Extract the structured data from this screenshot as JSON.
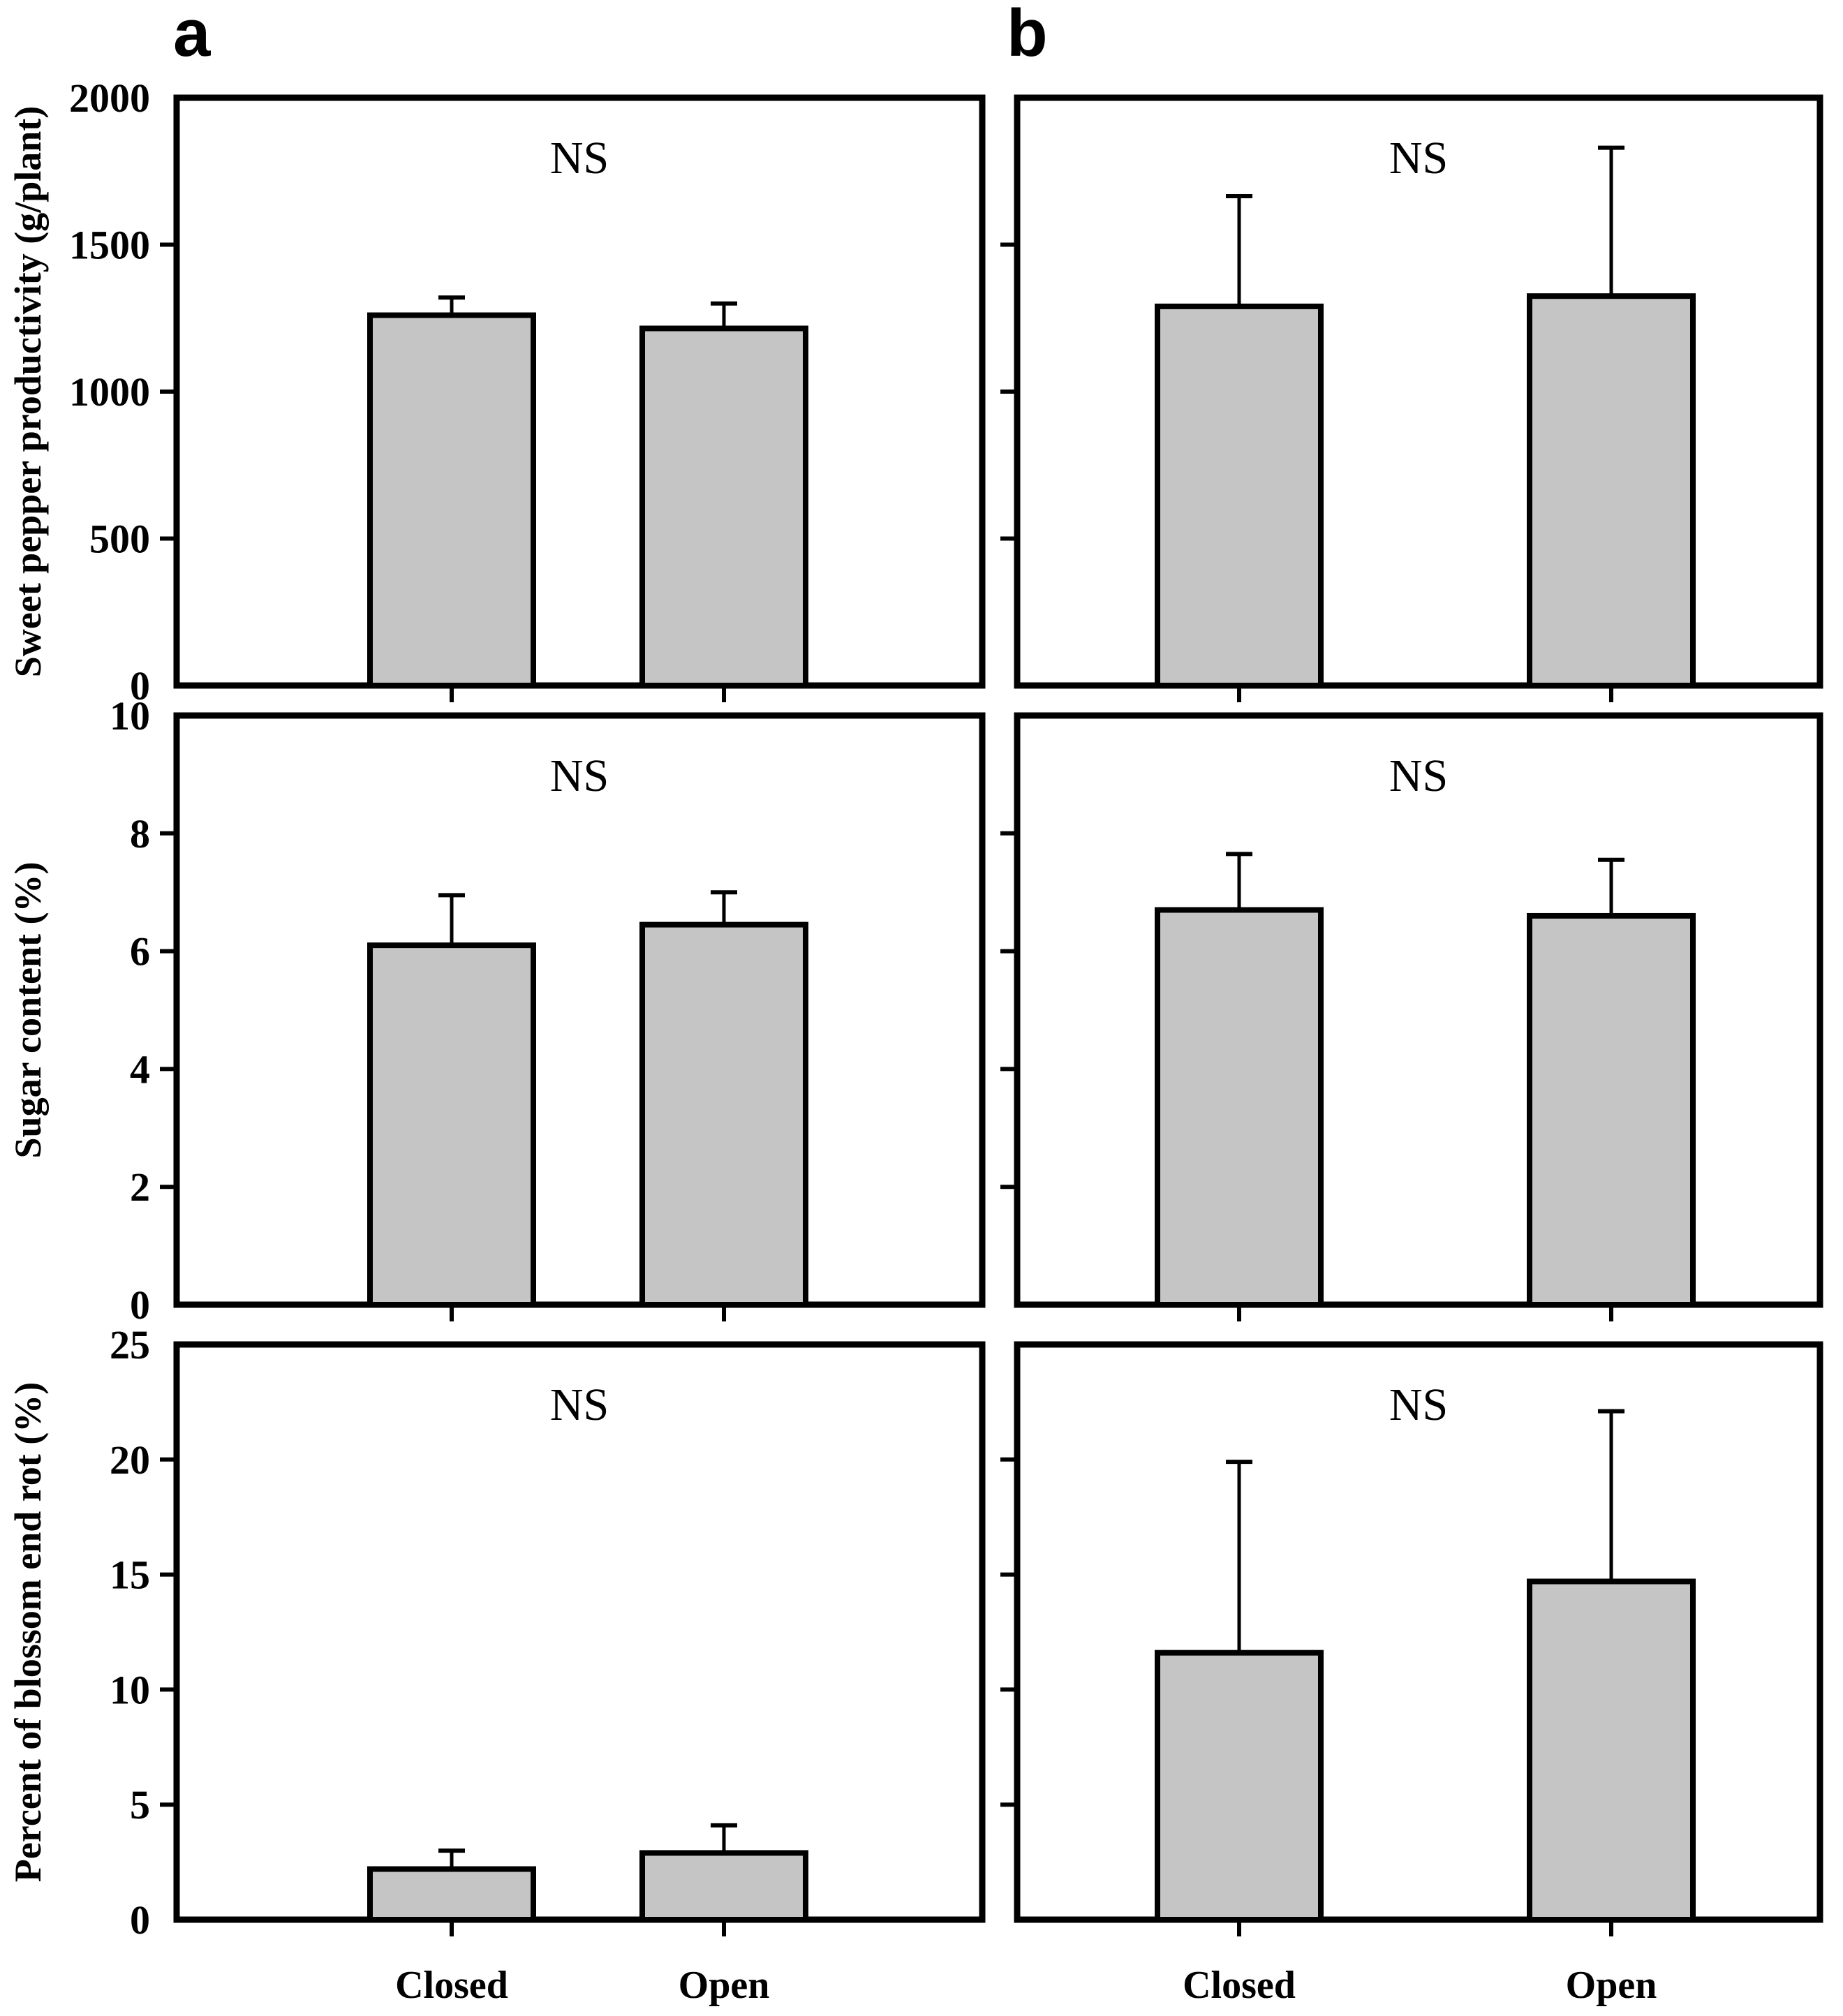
{
  "figure": {
    "panel_labels": {
      "a": "a",
      "b": "b"
    },
    "colors": {
      "bar_fill": "#c5c5c5",
      "bar_border": "#000000",
      "background": "#ffffff",
      "text": "#000000"
    }
  },
  "chart_data": [
    {
      "type": "bar",
      "panel": "a",
      "row": 1,
      "annotation": "NS",
      "ylabel": "Sweet pepper productivity (g/plant)",
      "ylim": [
        0,
        2000
      ],
      "yticks": [
        0,
        500,
        1000,
        1500,
        2000
      ],
      "show_ytick_labels": true,
      "categories": [
        "Closed",
        "Open"
      ],
      "show_category_labels": false,
      "values": [
        1260,
        1215
      ],
      "error_upper": [
        1320,
        1300
      ],
      "legend": "none",
      "grid": false
    },
    {
      "type": "bar",
      "panel": "b",
      "row": 1,
      "annotation": "NS",
      "ylabel": "",
      "ylim": [
        0,
        2000
      ],
      "yticks": [
        0,
        500,
        1000,
        1500,
        2000
      ],
      "show_ytick_labels": false,
      "categories": [
        "Closed",
        "Open"
      ],
      "show_category_labels": false,
      "values": [
        1290,
        1325
      ],
      "error_upper": [
        1665,
        1830
      ],
      "legend": "none",
      "grid": false
    },
    {
      "type": "bar",
      "panel": "a",
      "row": 2,
      "annotation": "NS",
      "ylabel": "Sugar content (%)",
      "ylim": [
        0,
        10
      ],
      "yticks": [
        0,
        2,
        4,
        6,
        8,
        10
      ],
      "show_ytick_labels": true,
      "categories": [
        "Closed",
        "Open"
      ],
      "show_category_labels": false,
      "values": [
        6.1,
        6.45
      ],
      "error_upper": [
        6.95,
        7.0
      ],
      "legend": "none",
      "grid": false
    },
    {
      "type": "bar",
      "panel": "b",
      "row": 2,
      "annotation": "NS",
      "ylabel": "",
      "ylim": [
        0,
        10
      ],
      "yticks": [
        0,
        2,
        4,
        6,
        8,
        10
      ],
      "show_ytick_labels": false,
      "categories": [
        "Closed",
        "Open"
      ],
      "show_category_labels": false,
      "values": [
        6.7,
        6.6
      ],
      "error_upper": [
        7.65,
        7.55
      ],
      "legend": "none",
      "grid": false
    },
    {
      "type": "bar",
      "panel": "a",
      "row": 3,
      "annotation": "NS",
      "ylabel": "Percent of blossom end rot (%)",
      "ylim": [
        0,
        25
      ],
      "yticks": [
        0,
        5,
        10,
        15,
        20,
        25
      ],
      "show_ytick_labels": true,
      "categories": [
        "Closed",
        "Open"
      ],
      "show_category_labels": true,
      "values": [
        2.2,
        2.9
      ],
      "error_upper": [
        3.0,
        4.1
      ],
      "legend": "none",
      "grid": false
    },
    {
      "type": "bar",
      "panel": "b",
      "row": 3,
      "annotation": "NS",
      "ylabel": "",
      "ylim": [
        0,
        25
      ],
      "yticks": [
        0,
        5,
        10,
        15,
        20,
        25
      ],
      "show_ytick_labels": false,
      "categories": [
        "Closed",
        "Open"
      ],
      "show_category_labels": true,
      "values": [
        11.6,
        14.7
      ],
      "error_upper": [
        19.9,
        22.1
      ],
      "legend": "none",
      "grid": false
    }
  ]
}
